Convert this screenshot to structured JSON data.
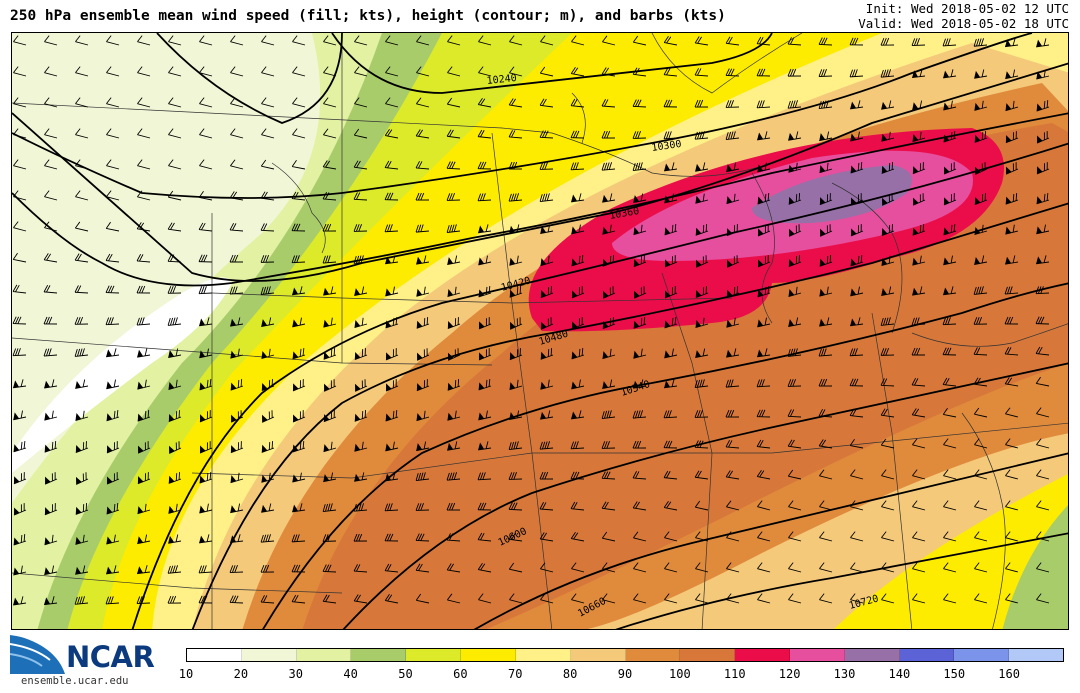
{
  "header": {
    "title": "250 hPa ensemble mean wind speed (fill; kts), height (contour; m), and barbs (kts)",
    "init": "Init: Wed 2018-05-02 12 UTC",
    "valid": "Valid: Wed 2018-05-02 18 UTC"
  },
  "logo": {
    "name": "NCAR",
    "url": "ensemble.ucar.edu"
  },
  "colorbar": {
    "ticks": [
      "10",
      "20",
      "30",
      "40",
      "50",
      "60",
      "70",
      "80",
      "90",
      "100",
      "110",
      "120",
      "130",
      "140",
      "150",
      "160"
    ],
    "colors": [
      "#ffffff",
      "#f1f6d6",
      "#e2f1a2",
      "#a9cc6b",
      "#dcea2a",
      "#fdec00",
      "#fff088",
      "#f4c97a",
      "#e08a3c",
      "#d7783a",
      "#ea0d4a",
      "#e54f9e",
      "#9870a8",
      "#5b63d6",
      "#7c93ea",
      "#b2c8f7"
    ]
  },
  "map": {
    "colors": {
      "c20": "#f1f6d6",
      "c30": "#e2f1a2",
      "c40": "#a9cc6b",
      "c50": "#dcea2a",
      "c60": "#fdec00",
      "c70": "#fff088",
      "c80": "#f4c97a",
      "c90": "#e08a3c",
      "c100": "#d7783a",
      "c110": "#ea0d4a",
      "c120": "#e54f9e",
      "c130": "#9870a8"
    },
    "contour_labels": [
      "10240",
      "10300",
      "10360",
      "10420",
      "10480",
      "10540",
      "10600",
      "10660",
      "10720"
    ]
  }
}
